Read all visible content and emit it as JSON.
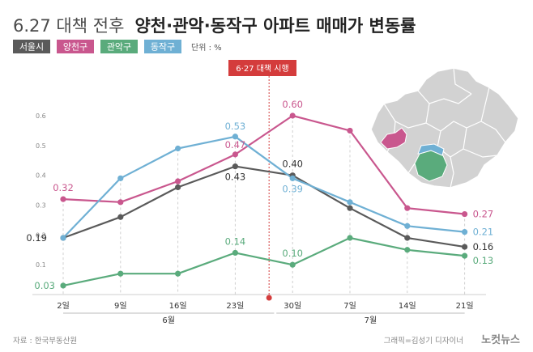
{
  "header": {
    "title_light": "6.27 대책 전후",
    "title_bold": "양천·관악·동작구 아파트 매매가 변동률"
  },
  "legend": {
    "unit": "단위 : %"
  },
  "policy": {
    "label": "6·27 대책 시행"
  },
  "footer": {
    "source": "자료 : 한국부동산원",
    "credit": "그래픽=김성기 디자이너",
    "brand": "노컷뉴스"
  },
  "colors": {
    "seoul": "#5a5a5a",
    "yangcheon": "#c9578e",
    "gwanak": "#5aab7c",
    "dongjak": "#6fb0d4",
    "policy": "#d43c3c",
    "map_fill": "#d2d2d2",
    "map_border": "#ffffff"
  },
  "chart_data": {
    "type": "line",
    "categories": [
      "2일",
      "9일",
      "16일",
      "23일",
      "30일",
      "7일",
      "14일",
      "21일"
    ],
    "month_labels": [
      "6월",
      "7월"
    ],
    "ylim": [
      0,
      0.6
    ],
    "yticks": [
      "0.1",
      "0.2",
      "0.3",
      "0.4",
      "0.5",
      "0.6"
    ],
    "grid": false,
    "event_after_index": 3,
    "series": [
      {
        "name": "서울시",
        "key": "seoul",
        "values": [
          0.19,
          0.26,
          0.36,
          0.43,
          0.4,
          0.29,
          0.19,
          0.16
        ],
        "labels": [
          "0.19",
          "",
          "",
          "0.43",
          "0.40",
          "",
          "",
          "0.16"
        ]
      },
      {
        "name": "양천구",
        "key": "yangcheon",
        "values": [
          0.32,
          0.31,
          0.38,
          0.47,
          0.6,
          0.55,
          0.29,
          0.27
        ],
        "labels": [
          "0.32",
          "",
          "",
          "0.47",
          "0.60",
          "",
          "",
          "0.27"
        ]
      },
      {
        "name": "관악구",
        "key": "gwanak",
        "values": [
          0.03,
          0.07,
          0.07,
          0.14,
          0.1,
          0.19,
          0.15,
          0.13
        ],
        "labels": [
          "0.03",
          "",
          "",
          "0.14",
          "0.10",
          "",
          "",
          "0.13"
        ]
      },
      {
        "name": "동작구",
        "key": "dongjak",
        "values": [
          0.19,
          0.39,
          0.49,
          0.53,
          0.39,
          0.31,
          0.23,
          0.21
        ],
        "labels": [
          "",
          "",
          "",
          "0.53",
          "0.39",
          "",
          "",
          "0.21"
        ]
      }
    ]
  }
}
